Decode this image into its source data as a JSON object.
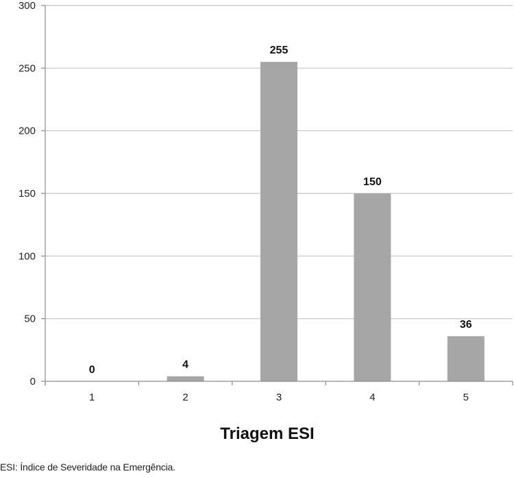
{
  "chart_data": {
    "type": "bar",
    "categories": [
      "1",
      "2",
      "3",
      "4",
      "5"
    ],
    "values": [
      0,
      4,
      255,
      150,
      36
    ],
    "data_labels": [
      "0",
      "4",
      "255",
      "150",
      "36"
    ],
    "title": "",
    "xlabel": "Triagem ESI",
    "ylabel": "",
    "ylim": [
      0,
      300
    ],
    "y_ticks": [
      "0",
      "50",
      "100",
      "150",
      "200",
      "250",
      "300"
    ],
    "grid": "horizontal",
    "legend": "none",
    "bar_color": "#a6a6a6",
    "grid_color": "#c4c4c4",
    "axis_color": "#8c8c8c"
  },
  "footnote": "ESI: Índice de Severidade na Emergência."
}
